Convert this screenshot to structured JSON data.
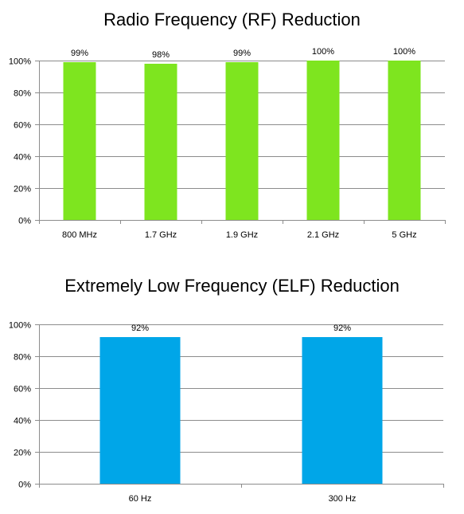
{
  "chart_data": [
    {
      "type": "bar",
      "title": "Radio Frequency (RF) Reduction",
      "categories": [
        "800 MHz",
        "1.7 GHz",
        "1.9 GHz",
        "2.1 GHz",
        "5 GHz"
      ],
      "values": [
        99,
        98,
        99,
        100,
        100
      ],
      "data_labels": [
        "99%",
        "98%",
        "99%",
        "100%",
        "100%"
      ],
      "ylim": [
        0,
        100
      ],
      "yticks": [
        "0%",
        "20%",
        "40%",
        "60%",
        "80%",
        "100%"
      ],
      "xlabel": "",
      "ylabel": "",
      "grid": true,
      "legend": "none",
      "bar_color": "#7ee51f"
    },
    {
      "type": "bar",
      "title": "Extremely Low Frequency (ELF) Reduction",
      "categories": [
        "60 Hz",
        "300 Hz"
      ],
      "values": [
        92,
        92
      ],
      "data_labels": [
        "92%",
        "92%"
      ],
      "ylim": [
        0,
        100
      ],
      "yticks": [
        "0%",
        "20%",
        "40%",
        "60%",
        "80%",
        "100%"
      ],
      "xlabel": "",
      "ylabel": "",
      "grid": true,
      "legend": "none",
      "bar_color": "#00a6e8"
    }
  ]
}
